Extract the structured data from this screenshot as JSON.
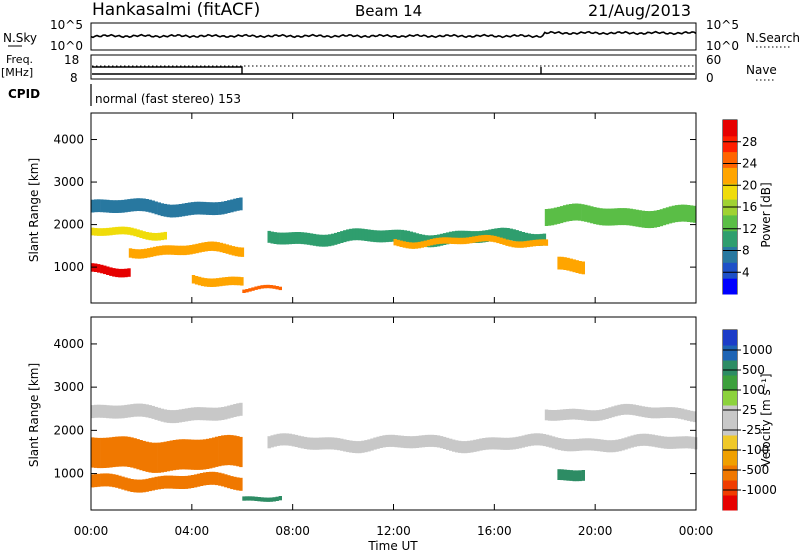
{
  "header": {
    "station": "Hankasalmi (fitACF)",
    "beam": "Beam 14",
    "date": "21/Aug/2013"
  },
  "strip_nsky": {
    "left_label": "N.Sky",
    "right_label": "N.Search",
    "ticks": [
      "10^5",
      "10^0"
    ]
  },
  "strip_freq": {
    "left_label_1": "Freq.",
    "left_label_2": "[MHz]",
    "left_ticks": [
      "18",
      "8"
    ],
    "right_label": "Nave",
    "right_ticks": [
      "60",
      "0"
    ]
  },
  "cpid": {
    "label": "CPID",
    "mode_text": "normal (fast stereo) 153"
  },
  "x_axis": {
    "label": "Time UT",
    "tick_labels": [
      "00:00",
      "04:00",
      "08:00",
      "12:00",
      "16:00",
      "20:00",
      "00:00"
    ]
  },
  "power_panel": {
    "ylabel": "Slant Range [km]",
    "yticks": [
      "4000",
      "3000",
      "2000",
      "1000"
    ],
    "colorbar_label": "Power [dB]",
    "colorbar_ticks": [
      "28",
      "24",
      "20",
      "16",
      "12",
      "8",
      "4"
    ],
    "colors": [
      "#0000ff",
      "#1e50c8",
      "#2878a0",
      "#2f9e6e",
      "#5abe46",
      "#a0d232",
      "#f0dc0a",
      "#ffa500",
      "#ff6400",
      "#ff1e00",
      "#e60000"
    ]
  },
  "velocity_panel": {
    "ylabel": "Slant Range [km]",
    "yticks": [
      "4000",
      "3000",
      "2000",
      "1000"
    ],
    "colorbar_label": "Velocity [m s⁻¹]",
    "colorbar_ticks": [
      "1000",
      "500",
      "100",
      "25",
      "-25",
      "-100",
      "-500",
      "-1000"
    ],
    "colors": [
      "#1c3cc8",
      "#1e64b4",
      "#2d8c64",
      "#3ca03c",
      "#8cd23c",
      "#c8c8c8",
      "#c8c8c8",
      "#f0c828",
      "#f0a000",
      "#f07800",
      "#f03c00",
      "#e60000"
    ]
  },
  "chart_data": {
    "type": "heatmap",
    "x_range_hours": [
      0,
      24
    ],
    "y_range_km": [
      180,
      4600
    ],
    "power_bands": [
      {
        "t0": 0.0,
        "t1": 6.0,
        "center_km": 2400,
        "width_km": 300,
        "value_db": 9
      },
      {
        "t0": 0.0,
        "t1": 3.0,
        "center_km": 1800,
        "width_km": 180,
        "value_db": 18
      },
      {
        "t0": 1.5,
        "t1": 6.0,
        "center_km": 1400,
        "width_km": 220,
        "value_db": 22
      },
      {
        "t0": 0.0,
        "t1": 1.5,
        "center_km": 950,
        "width_km": 200,
        "value_db": 30
      },
      {
        "t0": 4.0,
        "t1": 6.0,
        "center_km": 700,
        "width_km": 200,
        "value_db": 20
      },
      {
        "t0": 6.0,
        "t1": 7.5,
        "center_km": 450,
        "width_km": 80,
        "value_db": 24
      },
      {
        "t0": 7.0,
        "t1": 18.0,
        "center_km": 1700,
        "width_km": 280,
        "value_db": 12
      },
      {
        "t0": 12.0,
        "t1": 18.0,
        "center_km": 1600,
        "width_km": 150,
        "value_db": 20
      },
      {
        "t0": 18.0,
        "t1": 24.0,
        "center_km": 2200,
        "width_km": 400,
        "value_db": 14
      },
      {
        "t0": 18.5,
        "t1": 19.5,
        "center_km": 1000,
        "width_km": 300,
        "value_db": 22
      }
    ],
    "velocity_bands": [
      {
        "t0": 0.0,
        "t1": 6.0,
        "center_km": 2400,
        "width_km": 300,
        "value_ms": 0
      },
      {
        "t0": 0.0,
        "t1": 6.0,
        "center_km": 1450,
        "width_km": 700,
        "value_ms": -150
      },
      {
        "t0": 0.0,
        "t1": 6.0,
        "center_km": 800,
        "width_km": 300,
        "value_ms": -200
      },
      {
        "t0": 6.0,
        "t1": 7.5,
        "center_km": 450,
        "width_km": 100,
        "value_ms": 150
      },
      {
        "t0": 7.0,
        "t1": 24.0,
        "center_km": 1700,
        "width_km": 280,
        "value_ms": 0
      },
      {
        "t0": 18.0,
        "t1": 24.0,
        "center_km": 2400,
        "width_km": 250,
        "value_ms": 0
      },
      {
        "t0": 18.5,
        "t1": 19.5,
        "center_km": 1000,
        "width_km": 250,
        "value_ms": 200
      }
    ]
  }
}
